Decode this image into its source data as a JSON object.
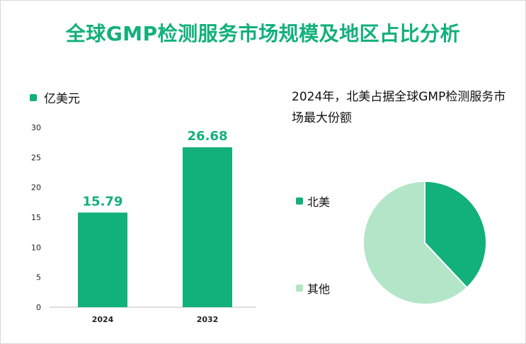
{
  "title": "全球GMP检测服务市场规模及地区占比分析",
  "colors": {
    "title": "#12b07a",
    "bar": "#12b07a",
    "pie_primary": "#12b07a",
    "pie_secondary": "#b3e6c8"
  },
  "chart_data": [
    {
      "type": "bar",
      "legend": "亿美元",
      "categories": [
        "2024",
        "2032"
      ],
      "values": [
        15.79,
        26.68
      ],
      "value_labels": [
        "15.79",
        "26.68"
      ],
      "ylim": [
        0,
        30
      ],
      "yticks": [
        "0",
        "5",
        "10",
        "15",
        "20",
        "25",
        "30"
      ],
      "grid": false
    },
    {
      "type": "pie",
      "title": "2024年，北美占据全球GMP检测服务市场最大份额",
      "slices": [
        {
          "label": "北美",
          "value": 38,
          "color": "#12b07a"
        },
        {
          "label": "其他",
          "value": 62,
          "color": "#b3e6c8"
        }
      ]
    }
  ]
}
